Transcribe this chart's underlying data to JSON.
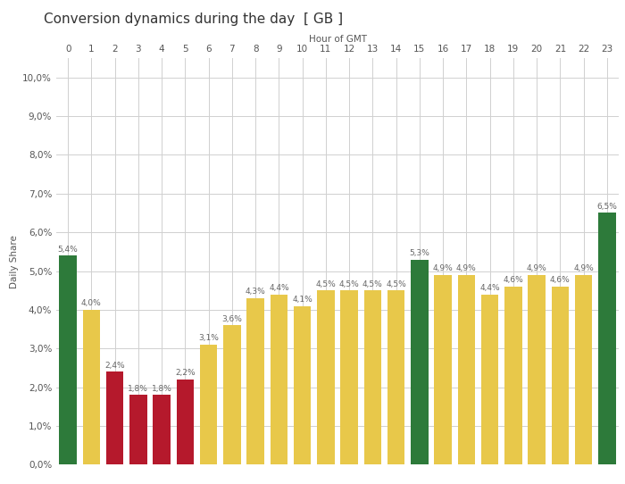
{
  "title": "Conversion dynamics during the day  [ GB ]",
  "xlabel": "Hour of GMT",
  "ylabel": "Daily Share",
  "hours": [
    0,
    1,
    2,
    3,
    4,
    5,
    6,
    7,
    8,
    9,
    10,
    11,
    12,
    13,
    14,
    15,
    16,
    17,
    18,
    19,
    20,
    21,
    22,
    23
  ],
  "values": [
    5.4,
    4.0,
    2.4,
    1.8,
    1.8,
    2.2,
    3.1,
    3.6,
    4.3,
    4.4,
    4.1,
    4.5,
    4.5,
    4.5,
    4.5,
    5.3,
    4.9,
    4.9,
    4.4,
    4.6,
    4.9,
    4.6,
    4.9,
    6.5
  ],
  "colors": [
    "#2d7a3a",
    "#e8c84a",
    "#b5192c",
    "#b5192c",
    "#b5192c",
    "#b5192c",
    "#e8c84a",
    "#e8c84a",
    "#e8c84a",
    "#e8c84a",
    "#e8c84a",
    "#e8c84a",
    "#e8c84a",
    "#e8c84a",
    "#e8c84a",
    "#2d7a3a",
    "#e8c84a",
    "#e8c84a",
    "#e8c84a",
    "#e8c84a",
    "#e8c84a",
    "#e8c84a",
    "#e8c84a",
    "#2d7a3a"
  ],
  "ylim": [
    0,
    10.5
  ],
  "yticks": [
    0,
    1.0,
    2.0,
    3.0,
    4.0,
    5.0,
    6.0,
    7.0,
    8.0,
    9.0,
    10.0
  ],
  "ytick_labels": [
    "0,0%",
    "1,0%",
    "2,0%",
    "3,0%",
    "4,0%",
    "5,0%",
    "6,0%",
    "7,0%",
    "8,0%",
    "9,0%",
    "10,0%"
  ],
  "bar_labels": [
    "5,4%",
    "4,0%",
    "2,4%",
    "1,8%",
    "1,8%",
    "2,2%",
    "3,1%",
    "3,6%",
    "4,3%",
    "4,4%",
    "4,1%",
    "4,5%",
    "4,5%",
    "4,5%",
    "4,5%",
    "5,3%",
    "4,9%",
    "4,9%",
    "4,4%",
    "4,6%",
    "4,9%",
    "4,6%",
    "4,9%",
    "6,5%"
  ],
  "background_color": "#ffffff",
  "grid_color": "#d0d0d0",
  "title_fontsize": 11,
  "label_fontsize": 7.5,
  "tick_fontsize": 7.5,
  "bar_label_fontsize": 6.5
}
